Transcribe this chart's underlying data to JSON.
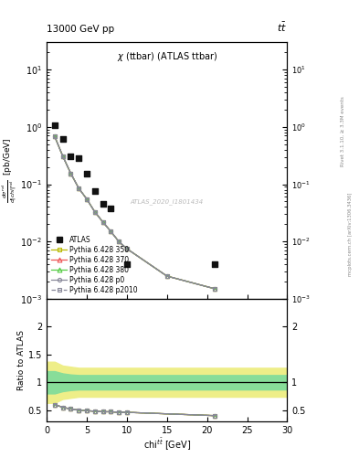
{
  "title_top_left": "13000 GeV pp",
  "title_top_right": "tt̅",
  "plot_title": "χ (ttbar) (ATLAS ttbar)",
  "watermark": "ATLAS_2020_I1801434",
  "right_label_top": "Rivet 3.1.10, ≥ 3.3M events",
  "right_label_bot": "mcplots.cern.ch [arXiv:1306.3436]",
  "ylabel_main": "dσ/d|chi| [pb/GeV]",
  "ylabel_ratio": "Ratio to ATLAS",
  "xlabel": "chi$^{tbart}$ [GeV]",
  "ylim_main_lo": 0.001,
  "ylim_main_hi": 30,
  "ylim_ratio_lo": 0.3,
  "ylim_ratio_hi": 2.5,
  "xlim_lo": 0,
  "xlim_hi": 30,
  "atlas_x": [
    1,
    2,
    3,
    4,
    5,
    6,
    7,
    8,
    10,
    21
  ],
  "atlas_y": [
    1.05,
    0.62,
    0.31,
    0.28,
    0.155,
    0.075,
    0.045,
    0.038,
    0.004,
    0.004
  ],
  "py_x": [
    1,
    2,
    3,
    4,
    5,
    6,
    7,
    8,
    9,
    10,
    15,
    21
  ],
  "py_350_y": [
    0.68,
    0.31,
    0.155,
    0.085,
    0.055,
    0.033,
    0.022,
    0.015,
    0.01,
    0.0075,
    0.0025,
    0.0015
  ],
  "py_370_y": [
    0.68,
    0.31,
    0.155,
    0.085,
    0.055,
    0.033,
    0.022,
    0.015,
    0.01,
    0.0075,
    0.0025,
    0.0015
  ],
  "py_380_y": [
    0.68,
    0.31,
    0.155,
    0.085,
    0.055,
    0.033,
    0.022,
    0.015,
    0.01,
    0.0075,
    0.0025,
    0.0015
  ],
  "py_p0_y": [
    0.68,
    0.31,
    0.155,
    0.085,
    0.055,
    0.033,
    0.022,
    0.015,
    0.01,
    0.0075,
    0.0025,
    0.0015
  ],
  "py_p2010_y": [
    0.68,
    0.31,
    0.155,
    0.085,
    0.055,
    0.033,
    0.022,
    0.015,
    0.01,
    0.0075,
    0.0025,
    0.0015
  ],
  "ratio_lines_x": [
    1,
    2,
    3,
    4,
    5,
    6,
    7,
    8,
    9,
    10,
    21
  ],
  "ratio_350": [
    0.6,
    0.55,
    0.52,
    0.5,
    0.49,
    0.48,
    0.47,
    0.47,
    0.46,
    0.46,
    0.4
  ],
  "ratio_370": [
    0.6,
    0.55,
    0.52,
    0.5,
    0.49,
    0.48,
    0.47,
    0.47,
    0.46,
    0.46,
    0.4
  ],
  "ratio_380": [
    0.6,
    0.55,
    0.52,
    0.5,
    0.49,
    0.48,
    0.47,
    0.47,
    0.46,
    0.46,
    0.4
  ],
  "ratio_p0": [
    0.6,
    0.55,
    0.52,
    0.5,
    0.49,
    0.48,
    0.47,
    0.47,
    0.46,
    0.46,
    0.4
  ],
  "ratio_p2010": [
    0.6,
    0.55,
    0.52,
    0.5,
    0.49,
    0.48,
    0.47,
    0.47,
    0.46,
    0.46,
    0.4
  ],
  "band_x": [
    0,
    1,
    2,
    3,
    4,
    30
  ],
  "yel_lo": [
    0.63,
    0.63,
    0.7,
    0.72,
    0.74,
    0.74
  ],
  "yel_hi": [
    1.37,
    1.37,
    1.3,
    1.28,
    1.26,
    1.26
  ],
  "grn_lo": [
    0.8,
    0.8,
    0.84,
    0.86,
    0.87,
    0.87
  ],
  "grn_hi": [
    1.2,
    1.2,
    1.16,
    1.14,
    1.13,
    1.13
  ],
  "color_350": "#b8b800",
  "color_370": "#ee5555",
  "color_380": "#55cc44",
  "color_p0": "#888899",
  "color_p2010": "#888899",
  "color_atlas": "#111111",
  "color_green": "#88dd99",
  "color_yellow": "#eeee88",
  "xticks": [
    0,
    5,
    10,
    15,
    20,
    25,
    30
  ],
  "ratio_yticks_vals": [
    0.5,
    1.0,
    1.5,
    2.0
  ],
  "ratio_yticks_labs": [
    "0.5",
    "1",
    "1.5",
    "2"
  ]
}
